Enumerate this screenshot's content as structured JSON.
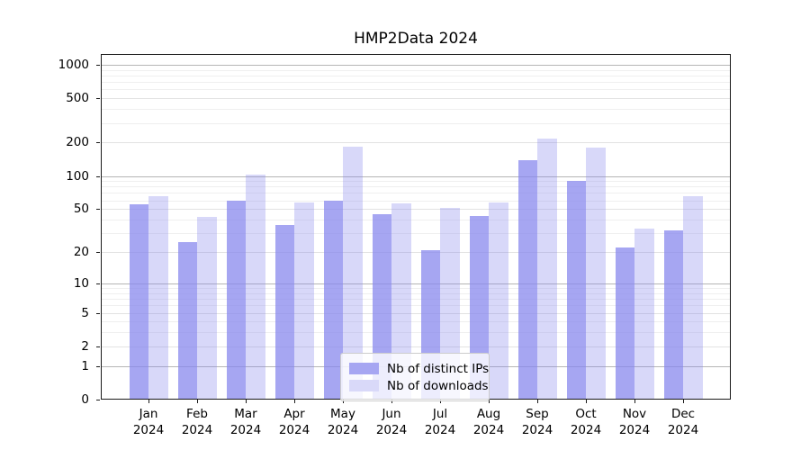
{
  "title": "HMP2Data 2024",
  "chart_data": {
    "type": "bar",
    "title": "HMP2Data 2024",
    "months": [
      "Jan",
      "Feb",
      "Mar",
      "Apr",
      "May",
      "Jun",
      "Jul",
      "Aug",
      "Sep",
      "Oct",
      "Nov",
      "Dec"
    ],
    "year": "2024",
    "series": [
      {
        "name": "Nb of distinct IPs",
        "color": "#8888ee",
        "fill_alpha": 0.75,
        "display_color": "#a6a6f2",
        "values": [
          55,
          25,
          60,
          36,
          60,
          45,
          21,
          43,
          140,
          91,
          22,
          32
        ]
      },
      {
        "name": "Nb of downloads",
        "color": "#8888ee",
        "fill_alpha": 0.33,
        "display_color": "#d9d9f9",
        "values": [
          66,
          42,
          102,
          57,
          185,
          56,
          51,
          57,
          219,
          182,
          33,
          65
        ]
      }
    ],
    "y_scale": "log1p",
    "y_ticks": [
      0,
      1,
      2,
      5,
      10,
      20,
      50,
      100,
      200,
      500,
      1000
    ],
    "y_minor_gridlines": [
      3,
      4,
      6,
      7,
      8,
      9,
      30,
      40,
      60,
      70,
      80,
      90,
      300,
      400,
      600,
      700,
      800,
      900
    ],
    "y_mid_gridlines": [
      2,
      5,
      20,
      50,
      200,
      500
    ],
    "y_major_gridlines": [
      1,
      10,
      100,
      1000
    ],
    "ylim": [
      0,
      1300
    ],
    "grid": true,
    "legend_position": "lower center",
    "colors": {
      "grid_major": "#b5b5b5",
      "grid_mid": "#e2e2e2",
      "grid_minor": "#efefef",
      "axis": "#1a1a1a",
      "background": "#ffffff"
    }
  }
}
